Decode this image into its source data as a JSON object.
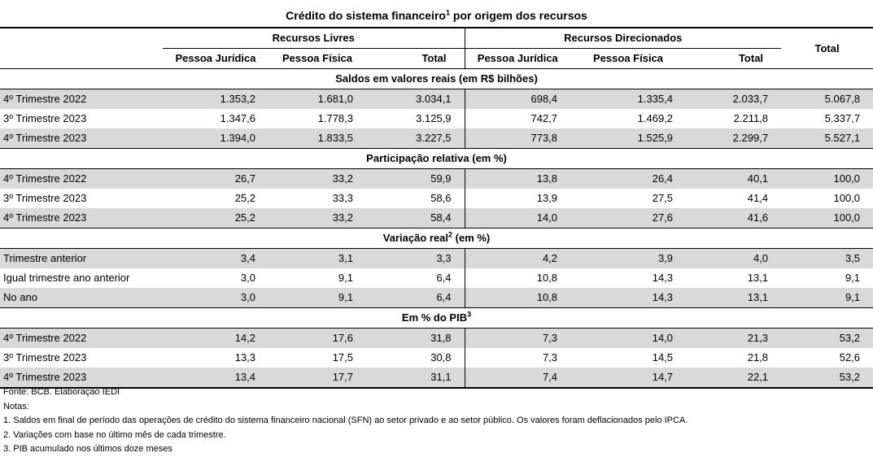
{
  "title": {
    "text": "Crédito do sistema financeiro",
    "superscript": "1",
    "suffix": " por origem dos recursos"
  },
  "header": {
    "group_livres": "Recursos Livres",
    "group_direcionados": "Recursos Direcionados",
    "total": "Total",
    "sub": [
      "Pessoa Jurídica",
      "Pessoa Física",
      "Total",
      "Pessoa Jurídica",
      "Pessoa Física",
      "Total"
    ]
  },
  "sections": [
    {
      "title": "Saldos em valores reais (em R$ bilhões)",
      "sup": "",
      "suffix": "",
      "rows": [
        {
          "label": "4º Trimestre 2022",
          "values": [
            "1.353,2",
            "1.681,0",
            "3.034,1",
            "698,4",
            "1.335,4",
            "2.033,7",
            "5.067,8"
          ]
        },
        {
          "label": "3º Trimestre 2023",
          "values": [
            "1.347,6",
            "1.778,3",
            "3.125,9",
            "742,7",
            "1.469,2",
            "2.211,8",
            "5.337,7"
          ]
        },
        {
          "label": "4º Trimestre 2023",
          "values": [
            "1.394,0",
            "1.833,5",
            "3.227,5",
            "773,8",
            "1.525,9",
            "2.299,7",
            "5.527,1"
          ]
        }
      ]
    },
    {
      "title": "Participação relativa (em %)",
      "sup": "",
      "suffix": "",
      "rows": [
        {
          "label": "4º Trimestre 2022",
          "values": [
            "26,7",
            "33,2",
            "59,9",
            "13,8",
            "26,4",
            "40,1",
            "100,0"
          ]
        },
        {
          "label": "3º Trimestre 2023",
          "values": [
            "25,2",
            "33,3",
            "58,6",
            "13,9",
            "27,5",
            "41,4",
            "100,0"
          ]
        },
        {
          "label": "4º Trimestre 2023",
          "values": [
            "25,2",
            "33,2",
            "58,4",
            "14,0",
            "27,6",
            "41,6",
            "100,0"
          ]
        }
      ]
    },
    {
      "title": "Variação real",
      "sup": "2",
      "suffix": " (em %)",
      "rows": [
        {
          "label": "Trimestre anterior",
          "values": [
            "3,4",
            "3,1",
            "3,3",
            "4,2",
            "3,9",
            "4,0",
            "3,5"
          ]
        },
        {
          "label": "Igual trimestre ano anterior",
          "values": [
            "3,0",
            "9,1",
            "6,4",
            "10,8",
            "14,3",
            "13,1",
            "9,1"
          ]
        },
        {
          "label": "No ano",
          "values": [
            "3,0",
            "9,1",
            "6,4",
            "10,8",
            "14,3",
            "13,1",
            "9,1"
          ]
        }
      ]
    },
    {
      "title": "Em % do PIB",
      "sup": "3",
      "suffix": "",
      "rows": [
        {
          "label": "4º Trimestre 2022",
          "values": [
            "14,2",
            "17,6",
            "31,8",
            "7,3",
            "14,0",
            "21,3",
            "53,2"
          ]
        },
        {
          "label": "3º Trimestre 2023",
          "values": [
            "13,3",
            "17,5",
            "30,8",
            "7,3",
            "14,5",
            "21,8",
            "52,6"
          ]
        },
        {
          "label": "4º Trimestre 2023",
          "values": [
            "13,4",
            "17,7",
            "31,1",
            "7,4",
            "14,7",
            "22,1",
            "53,2"
          ]
        }
      ]
    }
  ],
  "notes": [
    "Fonte: BCB. Elaboração IEDI",
    "Notas:",
    "1. Saldos em final de período das operações de crédito do sistema financeiro nacional (SFN) ao setor privado e ao setor público. Os valores foram deflacionados pelo IPCA.",
    "2. Variações com base no último mês de cada trimestre.",
    "3. PIB acumulado nos últimos doze meses"
  ]
}
